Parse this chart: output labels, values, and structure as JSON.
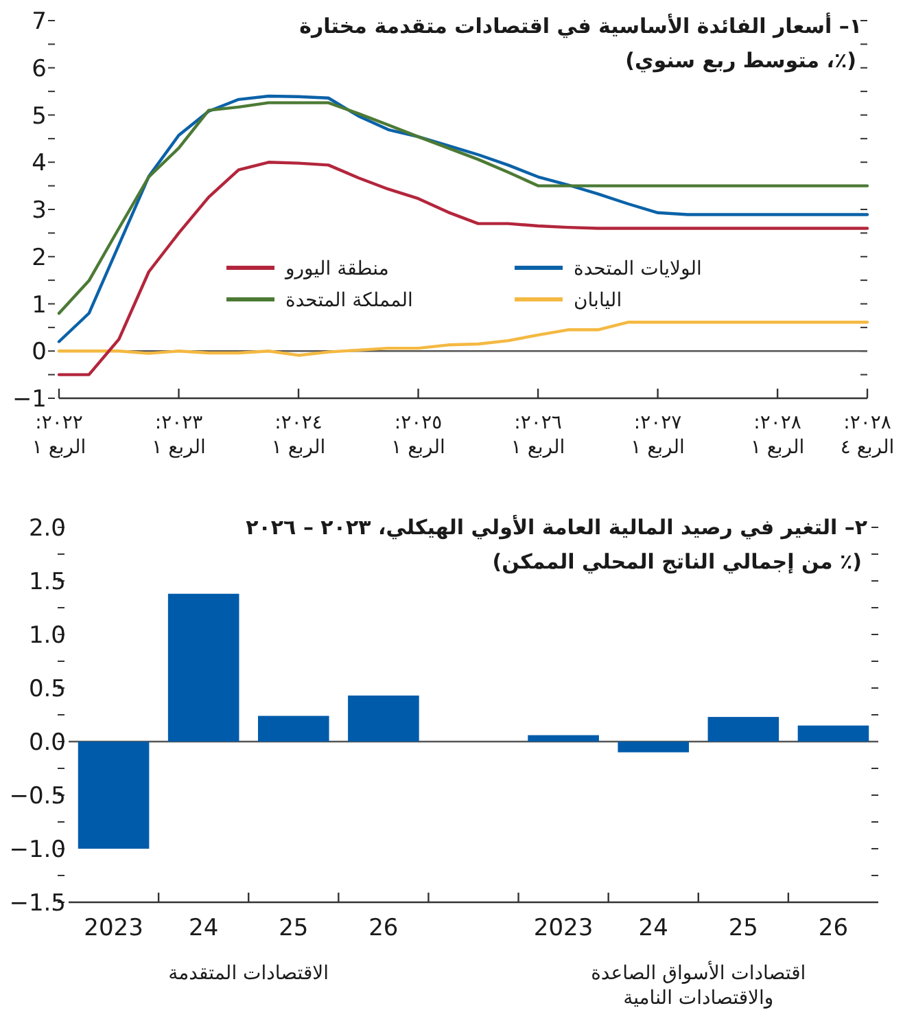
{
  "chart_data": [
    {
      "type": "line",
      "title": "١– أسعار الفائدة الأساسية في اقتصادات متقدمة مختارة",
      "subtitle": "(٪، متوسط ربع سنوي)",
      "x": [
        "2022-01",
        "2022-04",
        "2022-07",
        "2022-10",
        "2023-01",
        "2023-04",
        "2023-07",
        "2023-10",
        "2024-01",
        "2024-04",
        "2024-07",
        "2024-10",
        "2025-01",
        "2025-04",
        "2025-07",
        "2025-10",
        "2026-01",
        "2026-04",
        "2026-07",
        "2026-10",
        "2027-01",
        "2027-04",
        "2027-07",
        "2027-10",
        "2028-01",
        "2028-04",
        "2028-07",
        "2028-10"
      ],
      "series": [
        {
          "name": "الولايات المتحدة",
          "color": "#0b62a8",
          "values": [
            0.2,
            0.8,
            2.25,
            3.7,
            4.57,
            5.08,
            5.33,
            5.4,
            5.39,
            5.36,
            4.98,
            4.69,
            4.54,
            4.35,
            4.16,
            3.94,
            3.69,
            3.52,
            3.33,
            3.12,
            2.93,
            2.89,
            2.89,
            2.89,
            2.89,
            2.89,
            2.89,
            2.89
          ]
        },
        {
          "name": "اليابان",
          "color": "#f4b942",
          "values": [
            0,
            0,
            0,
            -0.05,
            0,
            -0.04,
            -0.04,
            0,
            -0.09,
            -0.02,
            0.02,
            0.06,
            0.06,
            0.13,
            0.15,
            0.22,
            0.34,
            0.45,
            0.45,
            0.61,
            0.61,
            0.61,
            0.61,
            0.61,
            0.61,
            0.61,
            0.61,
            0.61
          ]
        },
        {
          "name": "منطقة اليورو",
          "color": "#b3263c",
          "values": [
            -0.5,
            -0.5,
            0.25,
            1.68,
            2.5,
            3.26,
            3.84,
            4.0,
            3.98,
            3.94,
            3.67,
            3.43,
            3.23,
            2.94,
            2.7,
            2.7,
            2.65,
            2.62,
            2.6,
            2.6,
            2.6,
            2.6,
            2.6,
            2.6,
            2.6,
            2.6,
            2.6,
            2.6
          ]
        },
        {
          "name": "المملكة المتحدة",
          "color": "#4c7a35",
          "values": [
            0.8,
            1.49,
            2.6,
            3.69,
            4.3,
            5.1,
            5.17,
            5.26,
            5.26,
            5.26,
            5.03,
            4.79,
            4.54,
            4.3,
            4.06,
            3.79,
            3.5,
            3.5,
            3.5,
            3.5,
            3.5,
            3.5,
            3.5,
            3.5,
            3.5,
            3.5,
            3.5,
            3.5
          ]
        }
      ],
      "xlim": [
        "2022-01",
        "2028-10"
      ],
      "xticks": [
        {
          "value": "2022-01",
          "label": "٢٠٢٢:\nالربع ١"
        },
        {
          "value": "2023-01",
          "label": "٢٠٢٣:\nالربع ١"
        },
        {
          "value": "2024-01",
          "label": "٢٠٢٤:\nالربع ١"
        },
        {
          "value": "2025-01",
          "label": "٢٠٢٥:\nالربع ١"
        },
        {
          "value": "2026-01",
          "label": "٢٠٢٦:\nالربع ١"
        },
        {
          "value": "2027-01",
          "label": "٢٠٢٧:\nالربع ١"
        },
        {
          "value": "2028-01",
          "label": "٢٠٢٨:\nالربع ١"
        },
        {
          "value": "2028-10",
          "label": "٢٠٢٨:\nالربع ٤"
        }
      ],
      "ylim": [
        -1,
        7
      ],
      "yticks": [
        {
          "value": -1,
          "label": "−1"
        },
        {
          "value": -0.5,
          "label": null
        },
        0,
        {
          "value": 0.5,
          "label": null
        },
        1,
        {
          "value": 1.5,
          "label": null
        },
        2,
        {
          "value": 2.5,
          "label": null
        },
        3,
        {
          "value": 3.5,
          "label": null
        },
        4,
        {
          "value": 4.5,
          "label": null
        },
        5,
        {
          "value": 5.5,
          "label": null
        },
        6,
        {
          "value": 6.5,
          "label": null
        },
        7
      ],
      "ref_lines": [
        {
          "axis": "y",
          "value": 0,
          "color": "#555555"
        }
      ],
      "legend": "center"
    },
    {
      "type": "bar",
      "title": "٢– التغير في رصيد المالية العامة الأولي الهيكلي، ٢٠٢٣ – ٢٠٢٦",
      "subtitle": "(٪ من إجمالي الناتج المحلي الممكن)",
      "categories": [
        "2023",
        "24",
        "25",
        "26",
        null,
        "2023",
        "24",
        "25",
        "26"
      ],
      "values": [
        -1.0,
        1.38,
        0.24,
        0.43,
        null,
        0.06,
        -0.1,
        0.23,
        0.15
      ],
      "color": "#005baa",
      "ylim": [
        -1.5,
        2
      ],
      "yticks": [
        {
          "value": -1.5,
          "label": "−1.5"
        },
        {
          "value": -1.25,
          "label": null
        },
        {
          "value": -1,
          "label": "−1.0"
        },
        {
          "value": -0.75,
          "label": null
        },
        {
          "value": -0.5,
          "label": "−0.5"
        },
        {
          "value": -0.25,
          "label": null
        },
        {
          "value": 0,
          "label": "0.0"
        },
        {
          "value": 0.25,
          "label": null
        },
        {
          "value": 0.5,
          "label": "0.5"
        },
        {
          "value": 0.75,
          "label": null
        },
        {
          "value": 1,
          "label": "1.0"
        },
        {
          "value": 1.25,
          "label": null
        },
        {
          "value": 1.5,
          "label": "1.5"
        },
        {
          "value": 1.75,
          "label": null
        },
        {
          "value": 2,
          "label": "2.0"
        }
      ],
      "ref_lines": [
        {
          "axis": "y",
          "value": 0,
          "color": "#555555"
        }
      ],
      "annotations": [
        "الاقتصادات المتقدمة",
        "اقتصادات الأسواق الصاعدة\nوالاقتصادات النامية"
      ]
    }
  ]
}
